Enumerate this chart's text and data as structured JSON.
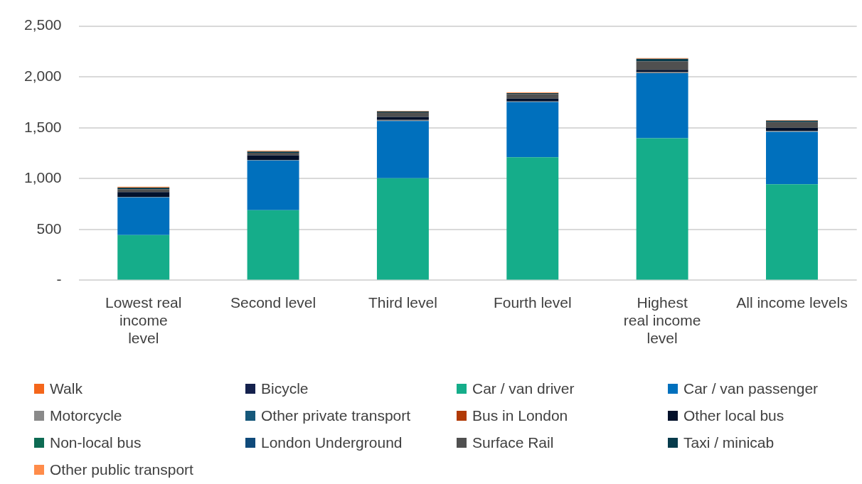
{
  "chart_data": {
    "type": "bar",
    "stacked": true,
    "categories": [
      "Lowest real income level",
      "Second level",
      "Third level",
      "Fourth level",
      "Highest real income level",
      "All income levels"
    ],
    "ylim": [
      0,
      2500
    ],
    "yticks": [
      {
        "value": 0,
        "label": "-"
      },
      {
        "value": 500,
        "label": "500"
      },
      {
        "value": 1000,
        "label": "1,000"
      },
      {
        "value": 1500,
        "label": "1,500"
      },
      {
        "value": 2000,
        "label": "2,000"
      },
      {
        "value": 2500,
        "label": "2,500"
      }
    ],
    "grid": "y",
    "legend": "bottom",
    "series": [
      {
        "name": "Walk",
        "color": "#f4661b",
        "values": [
          0,
          0,
          0,
          0,
          0,
          0
        ]
      },
      {
        "name": "Bicycle",
        "color": "#14214d",
        "values": [
          0,
          0,
          0,
          0,
          0,
          0
        ]
      },
      {
        "name": "Car / van driver",
        "color": "#15ad8a",
        "values": [
          445,
          690,
          1003,
          1209,
          1397,
          944
        ]
      },
      {
        "name": "Car / van passenger",
        "color": "#0070bd",
        "values": [
          370,
          488,
          564,
          544,
          639,
          516
        ]
      },
      {
        "name": "Motorcycle",
        "color": "#8a8a8a",
        "values": [
          6,
          6,
          10,
          5,
          10,
          10
        ]
      },
      {
        "name": "Other private transport",
        "color": "#16587a",
        "values": [
          0,
          0,
          0,
          0,
          0,
          0
        ]
      },
      {
        "name": "Bus in London",
        "color": "#b13a06",
        "values": [
          0,
          0,
          0,
          0,
          0,
          0
        ]
      },
      {
        "name": "Other local bus",
        "color": "#03112b",
        "values": [
          47,
          45,
          30,
          28,
          24,
          30
        ]
      },
      {
        "name": "Non-local bus",
        "color": "#0d6b53",
        "values": [
          0,
          0,
          0,
          0,
          0,
          0
        ]
      },
      {
        "name": "London Underground",
        "color": "#0f4a7a",
        "values": [
          0,
          0,
          0,
          0,
          0,
          0
        ]
      },
      {
        "name": "Surface Rail",
        "color": "#505050",
        "values": [
          27,
          25,
          45,
          45,
          83,
          55
        ]
      },
      {
        "name": "Taxi / minicab",
        "color": "#073b4c",
        "values": [
          16,
          12,
          8,
          10,
          24,
          14
        ]
      },
      {
        "name": "Other public transport",
        "color": "#ff8c4a",
        "values": [
          8,
          8,
          6,
          6,
          8,
          6
        ]
      }
    ]
  }
}
